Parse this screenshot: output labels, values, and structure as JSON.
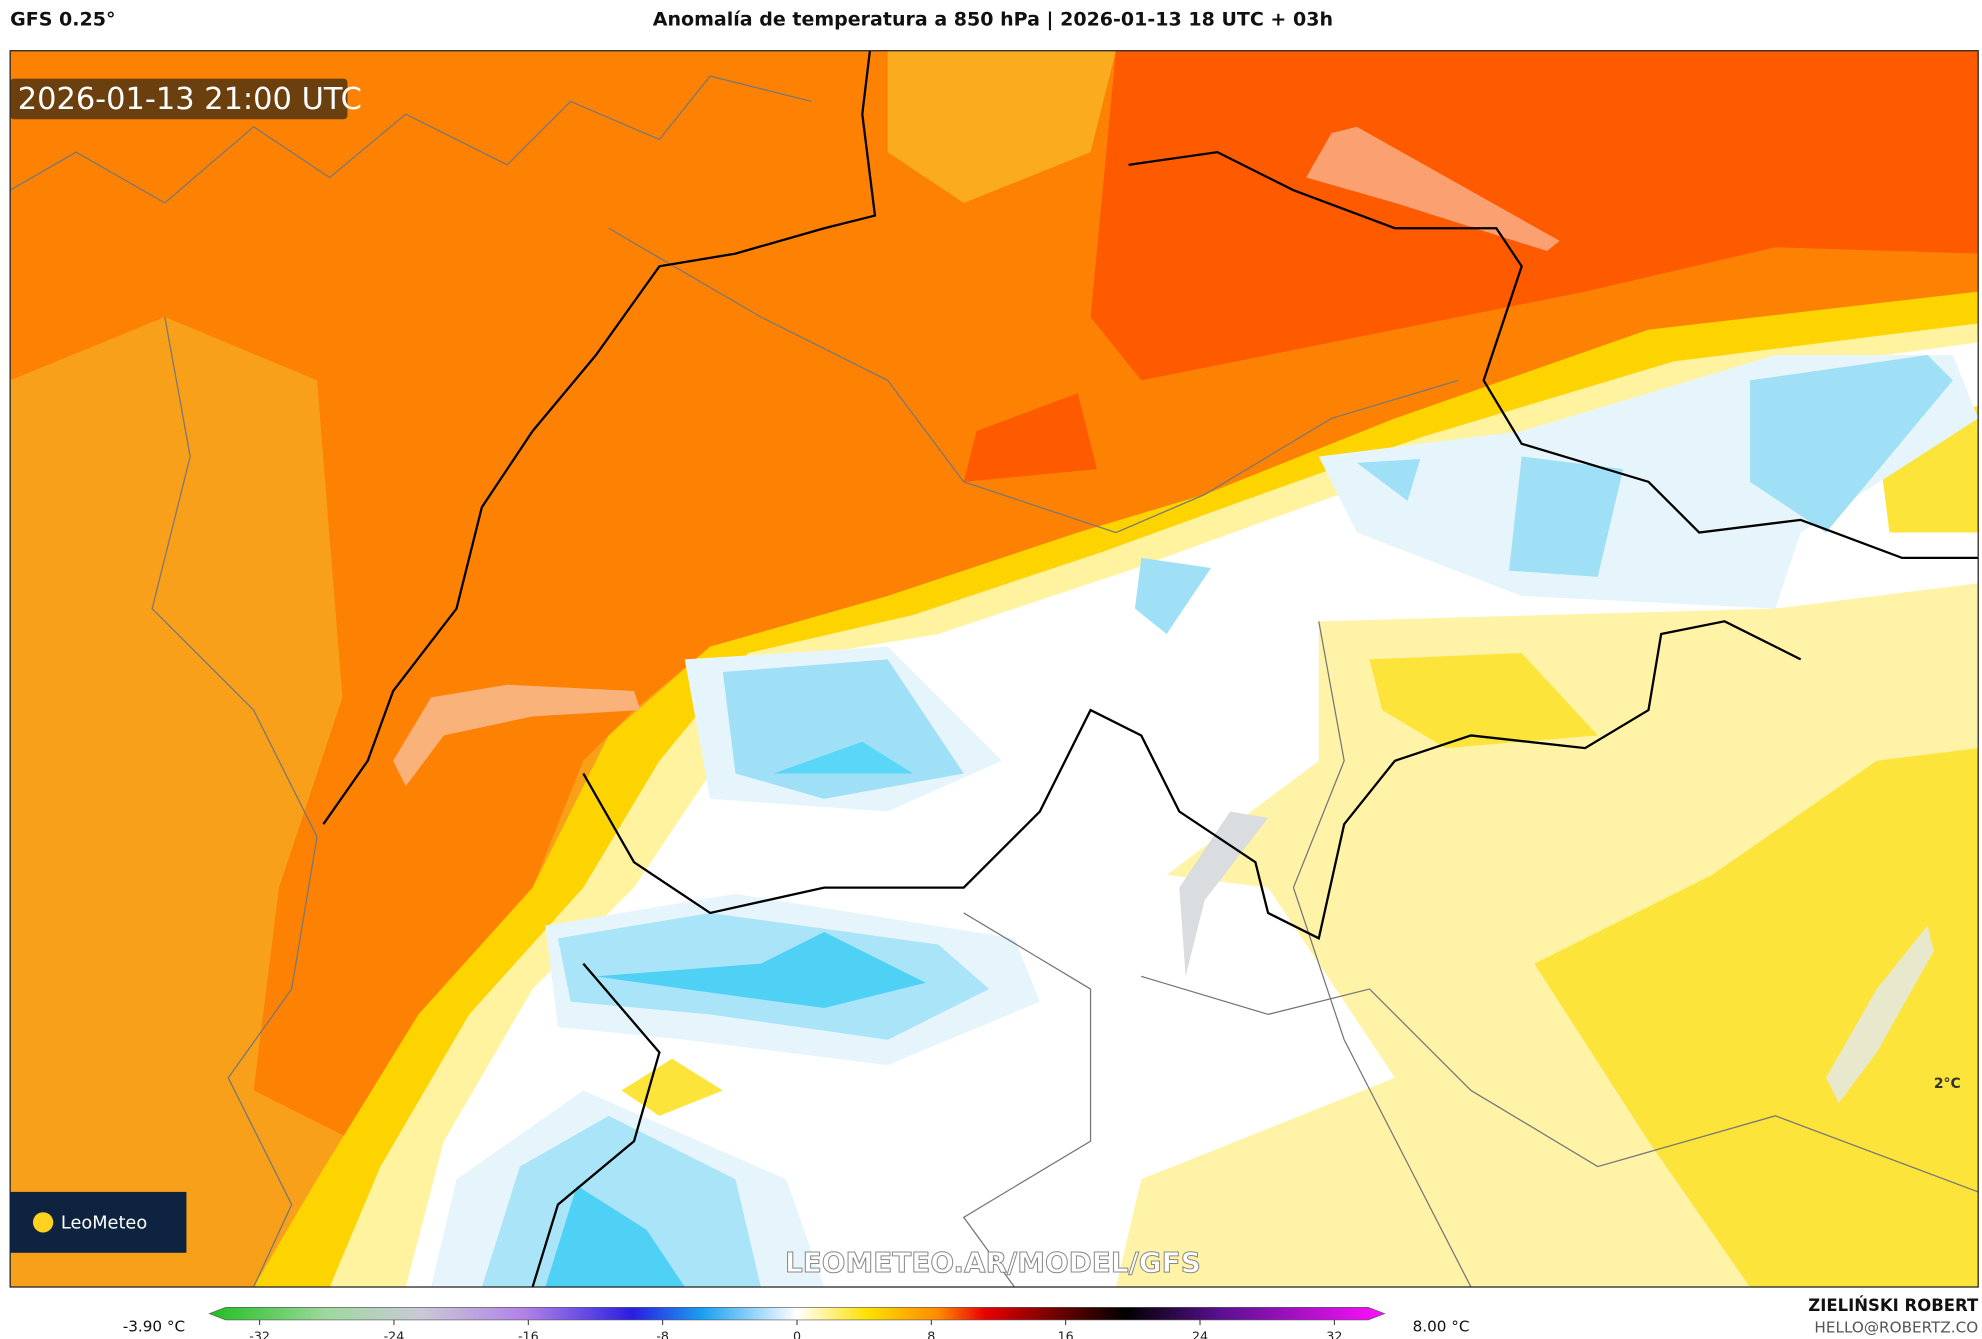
{
  "header": {
    "model": "GFS 0.25°",
    "title": "Anomalía de temperatura a 850 hPa | 2026-01-13 18 UTC + 03h"
  },
  "map": {
    "timestamp": "2026-01-13 21:00 UTC",
    "logo": "LeoMeteo",
    "watermark": "LEOMETEO.AR/MODEL/GFS",
    "label": "2°C"
  },
  "colorbar": {
    "min_label": "-3.90 °C",
    "max_label": "8.00 °C",
    "lim": [
      -35,
      35
    ],
    "ticks": [
      -32,
      -24,
      -16,
      -8,
      0,
      8,
      16,
      24,
      32
    ]
  },
  "footer": {
    "author": "ZIELIŃSKI ROBERT",
    "email": "HELLO@ROBERTZ.CO"
  }
}
